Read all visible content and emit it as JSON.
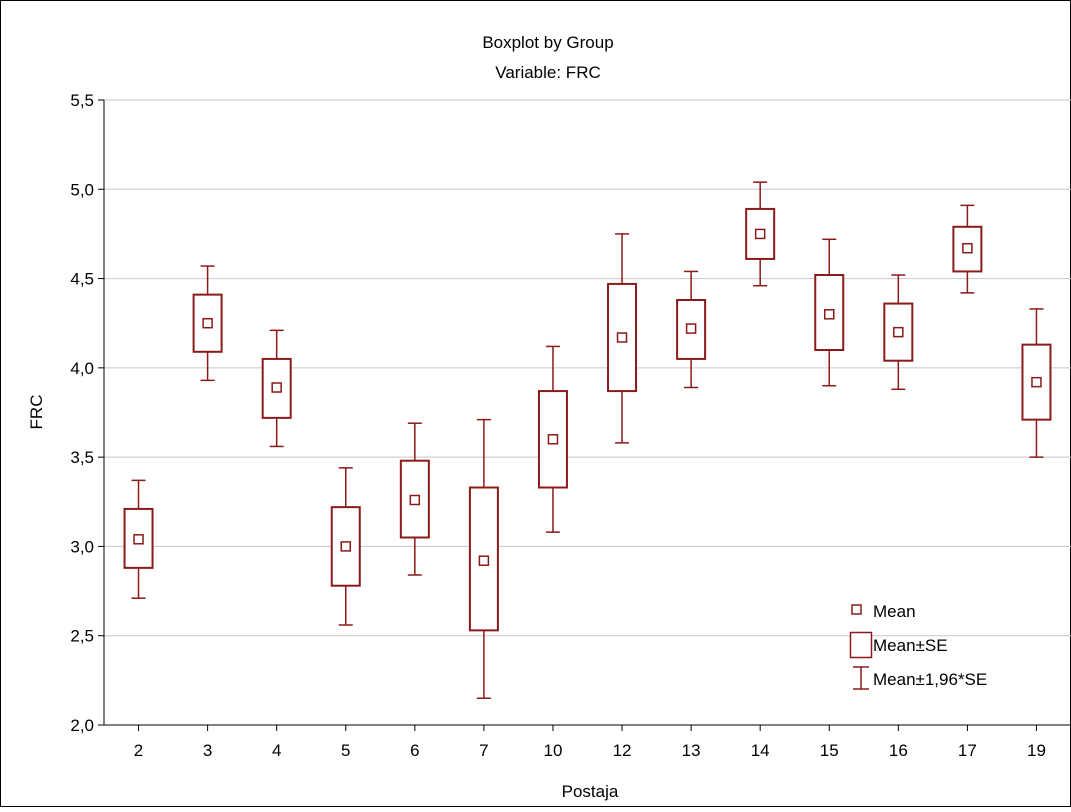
{
  "chart_data": {
    "type": "boxplot",
    "title": "Boxplot by Group",
    "subtitle": "Variable: FRC",
    "xlabel": "Postaja",
    "ylabel": "FRC",
    "ylim": [
      2.0,
      5.5
    ],
    "yticks": [
      "2,0",
      "2,5",
      "3,0",
      "3,5",
      "4,0",
      "4,5",
      "5,0",
      "5,5"
    ],
    "grid": true,
    "legend_position": "bottom-right",
    "legend": {
      "mean": "Mean",
      "se": "Mean±SE",
      "ci": "Mean±1,96*SE"
    },
    "colors": {
      "series": "#8b1a1a",
      "grid": "#c8c8c8",
      "axis": "#000000"
    },
    "categories": [
      "2",
      "3",
      "4",
      "5",
      "6",
      "7",
      "10",
      "12",
      "13",
      "14",
      "15",
      "16",
      "17",
      "19"
    ],
    "mean": [
      3.04,
      4.25,
      3.89,
      3.0,
      3.26,
      2.92,
      3.6,
      4.17,
      4.22,
      4.75,
      4.3,
      4.2,
      4.67,
      3.92
    ],
    "se_low": [
      2.88,
      4.09,
      3.72,
      2.78,
      3.05,
      2.53,
      3.33,
      3.87,
      4.05,
      4.61,
      4.1,
      4.04,
      4.54,
      3.71
    ],
    "se_high": [
      3.21,
      4.41,
      4.05,
      3.22,
      3.48,
      3.33,
      3.87,
      4.47,
      4.38,
      4.89,
      4.52,
      4.36,
      4.79,
      4.13
    ],
    "ci_low": [
      2.71,
      3.93,
      3.56,
      2.56,
      2.84,
      2.15,
      3.08,
      3.58,
      3.89,
      4.46,
      3.9,
      3.88,
      4.42,
      3.5
    ],
    "ci_high": [
      3.37,
      4.57,
      4.21,
      3.44,
      3.69,
      3.71,
      4.12,
      4.75,
      4.54,
      5.04,
      4.72,
      4.52,
      4.91,
      4.33
    ]
  }
}
